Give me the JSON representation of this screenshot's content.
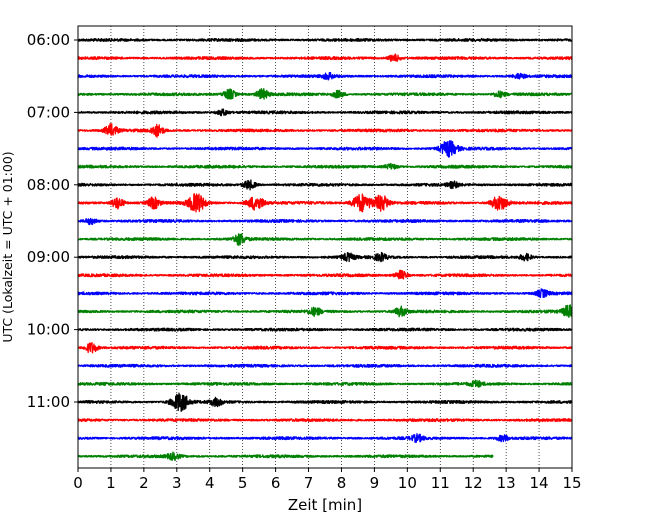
{
  "chart_data": {
    "type": "line",
    "xlabel": "Zeit  [min]",
    "ylabel": "UTC (Lokalzeit = UTC + 01:00)",
    "xlim": [
      0,
      15
    ],
    "xticks": [
      "0",
      "1",
      "2",
      "3",
      "4",
      "5",
      "6",
      "7",
      "8",
      "9",
      "10",
      "11",
      "12",
      "13",
      "14",
      "15"
    ],
    "grid": "vertical dotted",
    "trace_interval_min": 15,
    "trace_count": 24,
    "yticks": [
      "06:00",
      "07:00",
      "08:00",
      "09:00",
      "10:00",
      "11:00"
    ],
    "color_cycle": [
      "#000000",
      "#ff0000",
      "#0000ff",
      "#008000"
    ],
    "last_trace_end_min": 12.6,
    "traces": [
      {
        "start": "06:00",
        "color": "#000000",
        "events": []
      },
      {
        "start": "06:15",
        "color": "#ff0000",
        "events": [
          {
            "t": 9.6,
            "amp": 1.6
          }
        ]
      },
      {
        "start": "06:30",
        "color": "#0000ff",
        "events": [
          {
            "t": 7.6,
            "amp": 1.2
          },
          {
            "t": 13.4,
            "amp": 1.1
          }
        ]
      },
      {
        "start": "06:45",
        "color": "#008000",
        "events": [
          {
            "t": 4.6,
            "amp": 2.2
          },
          {
            "t": 5.6,
            "amp": 2.2
          },
          {
            "t": 7.9,
            "amp": 1.5
          },
          {
            "t": 12.8,
            "amp": 1.2
          }
        ]
      },
      {
        "start": "07:00",
        "color": "#000000",
        "events": [
          {
            "t": 4.4,
            "amp": 1.3
          }
        ]
      },
      {
        "start": "07:15",
        "color": "#ff0000",
        "events": [
          {
            "t": 1.0,
            "amp": 2.6
          },
          {
            "t": 2.4,
            "amp": 2.6
          }
        ]
      },
      {
        "start": "07:30",
        "color": "#0000ff",
        "events": [
          {
            "t": 11.25,
            "amp": 3.4
          }
        ]
      },
      {
        "start": "07:45",
        "color": "#008000",
        "events": [
          {
            "t": 9.5,
            "amp": 1.2
          }
        ]
      },
      {
        "start": "08:00",
        "color": "#000000",
        "events": [
          {
            "t": 5.2,
            "amp": 2.0
          },
          {
            "t": 11.4,
            "amp": 1.2
          }
        ]
      },
      {
        "start": "08:15",
        "color": "#ff0000",
        "events": [
          {
            "t": 1.2,
            "amp": 2.6
          },
          {
            "t": 2.3,
            "amp": 2.4
          },
          {
            "t": 3.6,
            "amp": 4.0
          },
          {
            "t": 5.4,
            "amp": 3.2
          },
          {
            "t": 8.6,
            "amp": 4.0
          },
          {
            "t": 9.2,
            "amp": 3.4
          },
          {
            "t": 12.8,
            "amp": 3.2
          }
        ]
      },
      {
        "start": "08:30",
        "color": "#0000ff",
        "events": [
          {
            "t": 0.4,
            "amp": 1.4
          }
        ]
      },
      {
        "start": "08:45",
        "color": "#008000",
        "events": [
          {
            "t": 4.9,
            "amp": 2.4
          }
        ]
      },
      {
        "start": "09:00",
        "color": "#000000",
        "events": [
          {
            "t": 8.2,
            "amp": 1.6
          },
          {
            "t": 9.2,
            "amp": 1.6
          },
          {
            "t": 13.6,
            "amp": 1.4
          }
        ]
      },
      {
        "start": "09:15",
        "color": "#ff0000",
        "events": [
          {
            "t": 9.8,
            "amp": 2.0
          }
        ]
      },
      {
        "start": "09:30",
        "color": "#0000ff",
        "events": [
          {
            "t": 14.1,
            "amp": 1.6
          }
        ]
      },
      {
        "start": "09:45",
        "color": "#008000",
        "events": [
          {
            "t": 7.2,
            "amp": 1.6
          },
          {
            "t": 9.8,
            "amp": 2.0
          },
          {
            "t": 14.9,
            "amp": 2.6
          }
        ]
      },
      {
        "start": "10:00",
        "color": "#000000",
        "events": []
      },
      {
        "start": "10:15",
        "color": "#ff0000",
        "events": [
          {
            "t": 0.4,
            "amp": 2.4
          }
        ]
      },
      {
        "start": "10:30",
        "color": "#0000ff",
        "events": []
      },
      {
        "start": "10:45",
        "color": "#008000",
        "events": [
          {
            "t": 12.1,
            "amp": 1.2
          }
        ]
      },
      {
        "start": "11:00",
        "color": "#000000",
        "events": [
          {
            "t": 3.1,
            "amp": 4.0
          },
          {
            "t": 4.2,
            "amp": 1.6
          }
        ]
      },
      {
        "start": "11:15",
        "color": "#ff0000",
        "events": []
      },
      {
        "start": "11:30",
        "color": "#0000ff",
        "events": [
          {
            "t": 10.3,
            "amp": 1.4
          },
          {
            "t": 12.9,
            "amp": 1.2
          }
        ]
      },
      {
        "start": "11:45",
        "color": "#008000",
        "events": [
          {
            "t": 2.9,
            "amp": 1.4
          }
        ]
      }
    ]
  }
}
